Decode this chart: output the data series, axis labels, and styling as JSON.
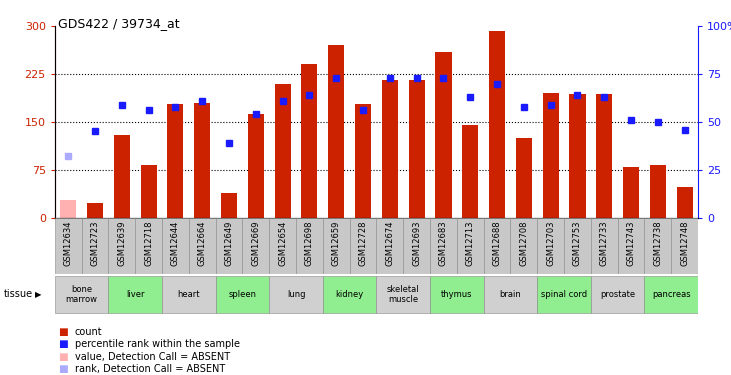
{
  "title": "GDS422 / 39734_at",
  "samples": [
    "GSM12634",
    "GSM12723",
    "GSM12639",
    "GSM12718",
    "GSM12644",
    "GSM12664",
    "GSM12649",
    "GSM12669",
    "GSM12654",
    "GSM12698",
    "GSM12659",
    "GSM12728",
    "GSM12674",
    "GSM12693",
    "GSM12683",
    "GSM12713",
    "GSM12688",
    "GSM12708",
    "GSM12703",
    "GSM12753",
    "GSM12733",
    "GSM12743",
    "GSM12738",
    "GSM12748"
  ],
  "bar_values": [
    28,
    22,
    130,
    82,
    178,
    180,
    38,
    163,
    210,
    240,
    270,
    178,
    215,
    215,
    260,
    145,
    292,
    125,
    195,
    193,
    193,
    80,
    82,
    48
  ],
  "absent_bar": [
    true,
    false,
    false,
    false,
    false,
    false,
    false,
    false,
    false,
    false,
    false,
    false,
    false,
    false,
    false,
    false,
    false,
    false,
    false,
    false,
    false,
    false,
    false,
    false
  ],
  "percentile_values": [
    null,
    45,
    59,
    56,
    58,
    61,
    39,
    54,
    61,
    64,
    73,
    56,
    73,
    73,
    73,
    63,
    70,
    58,
    59,
    64,
    63,
    51,
    50,
    46
  ],
  "absent_rank": [
    32,
    null,
    null,
    null,
    null,
    null,
    null,
    null,
    null,
    null,
    null,
    null,
    null,
    null,
    null,
    null,
    null,
    null,
    null,
    null,
    null,
    null,
    null,
    null
  ],
  "tissues": [
    {
      "name": "bone\nmarrow",
      "start": 0,
      "end": 1,
      "color": "#d0d0d0"
    },
    {
      "name": "liver",
      "start": 2,
      "end": 3,
      "color": "#90ee90"
    },
    {
      "name": "heart",
      "start": 4,
      "end": 5,
      "color": "#d0d0d0"
    },
    {
      "name": "spleen",
      "start": 6,
      "end": 7,
      "color": "#90ee90"
    },
    {
      "name": "lung",
      "start": 8,
      "end": 9,
      "color": "#d0d0d0"
    },
    {
      "name": "kidney",
      "start": 10,
      "end": 11,
      "color": "#90ee90"
    },
    {
      "name": "skeletal\nmuscle",
      "start": 12,
      "end": 13,
      "color": "#d0d0d0"
    },
    {
      "name": "thymus",
      "start": 14,
      "end": 15,
      "color": "#90ee90"
    },
    {
      "name": "brain",
      "start": 16,
      "end": 17,
      "color": "#d0d0d0"
    },
    {
      "name": "spinal cord",
      "start": 18,
      "end": 19,
      "color": "#90ee90"
    },
    {
      "name": "prostate",
      "start": 20,
      "end": 21,
      "color": "#d0d0d0"
    },
    {
      "name": "pancreas",
      "start": 22,
      "end": 23,
      "color": "#90ee90"
    }
  ],
  "ylim_left": [
    0,
    300
  ],
  "ylim_right": [
    0,
    100
  ],
  "yticks_left": [
    0,
    75,
    150,
    225,
    300
  ],
  "yticks_right": [
    0,
    25,
    50,
    75,
    100
  ],
  "bar_color": "#cc2200",
  "absent_bar_color": "#ffb0b0",
  "rank_color": "#1a1aff",
  "absent_rank_color": "#aaaaff",
  "bg_xtick": "#c8c8c8",
  "legend": [
    {
      "color": "#cc2200",
      "label": "count"
    },
    {
      "color": "#1a1aff",
      "label": "percentile rank within the sample"
    },
    {
      "color": "#ffb0b0",
      "label": "value, Detection Call = ABSENT"
    },
    {
      "color": "#aaaaff",
      "label": "rank, Detection Call = ABSENT"
    }
  ]
}
